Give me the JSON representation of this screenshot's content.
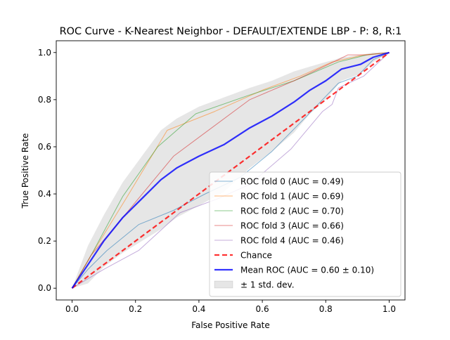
{
  "chart_data": {
    "type": "line",
    "title": "ROC Curve - K-Nearest Neighbor - DEFAULT/EXTENDE LBP - P: 8, R:1",
    "xlabel": "False Positive Rate",
    "ylabel": "True Positive Rate",
    "xlim": [
      -0.05,
      1.05
    ],
    "ylim": [
      -0.05,
      1.05
    ],
    "xticks": [
      "0.0",
      "0.2",
      "0.4",
      "0.6",
      "0.8",
      "1.0"
    ],
    "yticks": [
      "0.0",
      "0.2",
      "0.4",
      "0.6",
      "0.8",
      "1.0"
    ],
    "xtick_values": [
      0,
      0.2,
      0.4,
      0.6,
      0.8,
      1.0
    ],
    "ytick_values": [
      0,
      0.2,
      0.4,
      0.6,
      0.8,
      1.0
    ],
    "grid": false,
    "legend_position": "lower-right",
    "series": [
      {
        "name": "ROC fold 0 (AUC = 0.49)",
        "color": "#1f77b4",
        "x": [
          0,
          0.05,
          0.11,
          0.21,
          0.32,
          0.42,
          0.53,
          0.63,
          0.74,
          0.84,
          0.9,
          0.95,
          1.0
        ],
        "y": [
          0,
          0.08,
          0.16,
          0.27,
          0.33,
          0.4,
          0.47,
          0.58,
          0.73,
          0.87,
          0.9,
          0.97,
          1.0
        ]
      },
      {
        "name": "ROC fold 1 (AUC = 0.69)",
        "color": "#ff7f0e",
        "x": [
          0,
          0.06,
          0.17,
          0.3,
          0.45,
          0.6,
          0.72,
          0.82,
          0.92,
          1.0
        ],
        "y": [
          0,
          0.14,
          0.38,
          0.67,
          0.75,
          0.84,
          0.9,
          0.96,
          0.99,
          1.0
        ]
      },
      {
        "name": "ROC fold 2 (AUC = 0.70)",
        "color": "#2ca02c",
        "x": [
          0,
          0.06,
          0.16,
          0.27,
          0.39,
          0.56,
          0.7,
          0.84,
          0.93,
          1.0
        ],
        "y": [
          0,
          0.14,
          0.39,
          0.6,
          0.74,
          0.82,
          0.88,
          0.96,
          0.99,
          1.0
        ]
      },
      {
        "name": "ROC fold 3 (AUC = 0.66)",
        "color": "#d62728",
        "x": [
          0,
          0.06,
          0.16,
          0.32,
          0.42,
          0.56,
          0.7,
          0.84,
          0.87,
          0.93,
          1.0
        ],
        "y": [
          0,
          0.14,
          0.3,
          0.56,
          0.66,
          0.8,
          0.88,
          0.97,
          0.99,
          0.99,
          1.0
        ]
      },
      {
        "name": "ROC fold 4 (AUC = 0.46)",
        "color": "#9467bd",
        "x": [
          0,
          0.1,
          0.21,
          0.34,
          0.46,
          0.56,
          0.69,
          0.79,
          0.82,
          0.84,
          0.92,
          1.0
        ],
        "y": [
          0,
          0.08,
          0.16,
          0.32,
          0.38,
          0.44,
          0.59,
          0.75,
          0.78,
          0.85,
          0.9,
          1.0
        ]
      },
      {
        "name": "Chance",
        "color": "#ff0000",
        "style": "dashed",
        "x": [
          0,
          1
        ],
        "y": [
          0,
          1
        ]
      },
      {
        "name": "Mean ROC (AUC = 0.60 ± 0.10)",
        "color": "#0000ff",
        "x": [
          0,
          0.05,
          0.1,
          0.16,
          0.22,
          0.28,
          0.33,
          0.4,
          0.48,
          0.56,
          0.63,
          0.7,
          0.75,
          0.8,
          0.83,
          0.85,
          0.91,
          0.95,
          1.0
        ],
        "y": [
          0,
          0.1,
          0.2,
          0.3,
          0.38,
          0.46,
          0.51,
          0.56,
          0.61,
          0.68,
          0.73,
          0.79,
          0.84,
          0.88,
          0.91,
          0.93,
          0.95,
          0.98,
          1.0
        ]
      }
    ],
    "band": {
      "name": "± 1 std. dev.",
      "color": "#808080",
      "x": [
        0,
        0.05,
        0.1,
        0.16,
        0.22,
        0.28,
        0.33,
        0.4,
        0.48,
        0.56,
        0.63,
        0.7,
        0.75,
        0.8,
        0.83,
        0.85,
        0.91,
        0.95,
        1.0
      ],
      "upper": [
        0,
        0.18,
        0.31,
        0.45,
        0.56,
        0.67,
        0.72,
        0.77,
        0.81,
        0.85,
        0.88,
        0.92,
        0.94,
        0.96,
        0.97,
        0.98,
        0.99,
        1.0,
        1.0
      ],
      "lower": [
        0,
        0.02,
        0.09,
        0.15,
        0.2,
        0.25,
        0.3,
        0.35,
        0.41,
        0.51,
        0.58,
        0.66,
        0.74,
        0.8,
        0.85,
        0.88,
        0.91,
        0.96,
        1.0
      ]
    }
  }
}
